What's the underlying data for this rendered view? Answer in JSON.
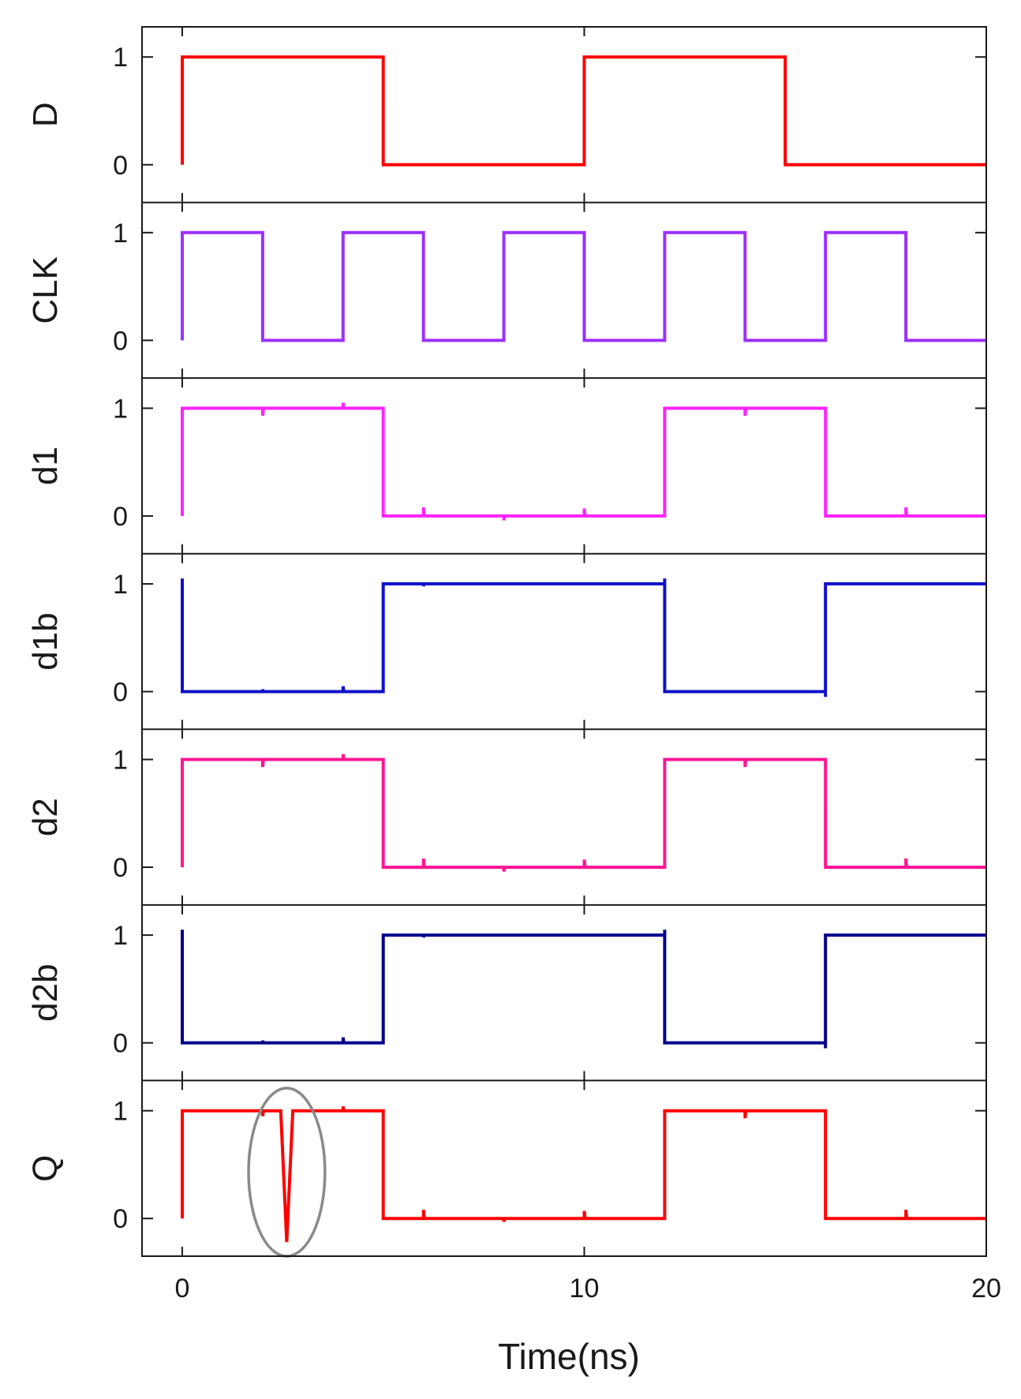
{
  "chart_data": {
    "type": "line",
    "layout": "stacked-panels",
    "xlabel": "Time(ns)",
    "xlim": [
      -1,
      20
    ],
    "xticks": [
      0,
      10,
      20
    ],
    "xtick_labels": [
      "0",
      "10",
      "20"
    ],
    "ylim": [
      -0.35,
      1.28
    ],
    "yticks": [
      0,
      1
    ],
    "ytick_labels": [
      "0",
      "1"
    ],
    "grid": false,
    "legend": "none",
    "panels": [
      {
        "name": "D",
        "color": "#ff0000",
        "points": [
          [
            0,
            0
          ],
          [
            0,
            1
          ],
          [
            5,
            1
          ],
          [
            5,
            0
          ],
          [
            10,
            0
          ],
          [
            10,
            1
          ],
          [
            15,
            1
          ],
          [
            15,
            0
          ],
          [
            20,
            0
          ]
        ]
      },
      {
        "name": "CLK",
        "color": "#9b30ff",
        "points": [
          [
            0,
            0
          ],
          [
            0,
            1
          ],
          [
            2,
            1
          ],
          [
            2,
            0
          ],
          [
            4,
            0
          ],
          [
            4,
            1
          ],
          [
            6,
            1
          ],
          [
            6,
            0
          ],
          [
            8,
            0
          ],
          [
            8,
            1
          ],
          [
            10,
            1
          ],
          [
            10,
            0
          ],
          [
            12,
            0
          ],
          [
            12,
            1
          ],
          [
            14,
            1
          ],
          [
            14,
            0
          ],
          [
            16,
            0
          ],
          [
            16,
            1
          ],
          [
            18,
            1
          ],
          [
            18,
            0
          ],
          [
            20,
            0
          ]
        ]
      },
      {
        "name": "d1",
        "color": "#ff22ff",
        "points": [
          [
            0,
            0
          ],
          [
            0,
            1
          ],
          [
            2,
            1
          ],
          [
            2,
            0.93
          ],
          [
            2.02,
            1
          ],
          [
            4,
            1
          ],
          [
            4,
            1.05
          ],
          [
            4.02,
            1
          ],
          [
            5,
            1
          ],
          [
            5,
            0
          ],
          [
            6,
            0
          ],
          [
            6,
            0.08
          ],
          [
            6.02,
            0
          ],
          [
            8,
            0
          ],
          [
            8,
            -0.04
          ],
          [
            8.02,
            0
          ],
          [
            10,
            0
          ],
          [
            10,
            0.07
          ],
          [
            10.02,
            0
          ],
          [
            12,
            0
          ],
          [
            12,
            1
          ],
          [
            14,
            1
          ],
          [
            14,
            0.93
          ],
          [
            14.02,
            1
          ],
          [
            16,
            1
          ],
          [
            16,
            0
          ],
          [
            18,
            0
          ],
          [
            18,
            0.08
          ],
          [
            18.02,
            0
          ],
          [
            20,
            0
          ]
        ]
      },
      {
        "name": "d1b",
        "color": "#1010c8",
        "points": [
          [
            0,
            1.05
          ],
          [
            0,
            0
          ],
          [
            2,
            0
          ],
          [
            2,
            0.02
          ],
          [
            2.02,
            0
          ],
          [
            4,
            0
          ],
          [
            4,
            0.05
          ],
          [
            4.02,
            0
          ],
          [
            5,
            0
          ],
          [
            5,
            1
          ],
          [
            6,
            1
          ],
          [
            6,
            0.98
          ],
          [
            6.02,
            1
          ],
          [
            8,
            1
          ],
          [
            10,
            1
          ],
          [
            12,
            1
          ],
          [
            12,
            1.05
          ],
          [
            12,
            0
          ],
          [
            14,
            0
          ],
          [
            16,
            0
          ],
          [
            16,
            -0.05
          ],
          [
            16,
            1
          ],
          [
            18,
            1
          ],
          [
            20,
            1
          ]
        ]
      },
      {
        "name": "d2",
        "color": "#ff1493",
        "points": [
          [
            0,
            0
          ],
          [
            0,
            1
          ],
          [
            2,
            1
          ],
          [
            2,
            0.93
          ],
          [
            2.02,
            1
          ],
          [
            4,
            1
          ],
          [
            4,
            1.05
          ],
          [
            4.02,
            1
          ],
          [
            5,
            1
          ],
          [
            5,
            0
          ],
          [
            6,
            0
          ],
          [
            6,
            0.08
          ],
          [
            6.02,
            0
          ],
          [
            8,
            0
          ],
          [
            8,
            -0.04
          ],
          [
            8.02,
            0
          ],
          [
            10,
            0
          ],
          [
            10,
            0.07
          ],
          [
            10.02,
            0
          ],
          [
            12,
            0
          ],
          [
            12,
            1
          ],
          [
            14,
            1
          ],
          [
            14,
            0.93
          ],
          [
            14.02,
            1
          ],
          [
            16,
            1
          ],
          [
            16,
            0
          ],
          [
            18,
            0
          ],
          [
            18,
            0.08
          ],
          [
            18.02,
            0
          ],
          [
            20,
            0
          ]
        ]
      },
      {
        "name": "d2b",
        "color": "#00008b",
        "points": [
          [
            0,
            1.05
          ],
          [
            0,
            0
          ],
          [
            2,
            0
          ],
          [
            2,
            0.02
          ],
          [
            2.02,
            0
          ],
          [
            4,
            0
          ],
          [
            4,
            0.05
          ],
          [
            4.02,
            0
          ],
          [
            5,
            0
          ],
          [
            5,
            1
          ],
          [
            6,
            1
          ],
          [
            6,
            0.98
          ],
          [
            6.02,
            1
          ],
          [
            8,
            1
          ],
          [
            10,
            1
          ],
          [
            12,
            1
          ],
          [
            12,
            1.05
          ],
          [
            12,
            0
          ],
          [
            14,
            0
          ],
          [
            16,
            0
          ],
          [
            16,
            -0.05
          ],
          [
            16,
            1
          ],
          [
            18,
            1
          ],
          [
            20,
            1
          ]
        ]
      },
      {
        "name": "Q",
        "color": "#ff0000",
        "points": [
          [
            0,
            0
          ],
          [
            0,
            1
          ],
          [
            2,
            1
          ],
          [
            2,
            0.95
          ],
          [
            2.02,
            1
          ],
          [
            2.45,
            1
          ],
          [
            2.6,
            -0.22
          ],
          [
            2.75,
            1
          ],
          [
            4,
            1
          ],
          [
            4,
            1.04
          ],
          [
            4.02,
            1
          ],
          [
            5,
            1
          ],
          [
            5,
            0
          ],
          [
            6,
            0
          ],
          [
            6,
            0.08
          ],
          [
            6.02,
            0
          ],
          [
            8,
            0
          ],
          [
            8,
            -0.03
          ],
          [
            8.02,
            0
          ],
          [
            10,
            0
          ],
          [
            10,
            0.07
          ],
          [
            10.02,
            0
          ],
          [
            12,
            0
          ],
          [
            12,
            1
          ],
          [
            14,
            1
          ],
          [
            14,
            0.93
          ],
          [
            14.02,
            1
          ],
          [
            16,
            1
          ],
          [
            16,
            0
          ],
          [
            18,
            0
          ],
          [
            18,
            0.08
          ],
          [
            18.02,
            0
          ],
          [
            20,
            0
          ]
        ],
        "annotation": {
          "type": "ellipse",
          "x": 2.6,
          "y": 0.43,
          "rx": 0.95,
          "ry": 0.78
        }
      }
    ]
  }
}
